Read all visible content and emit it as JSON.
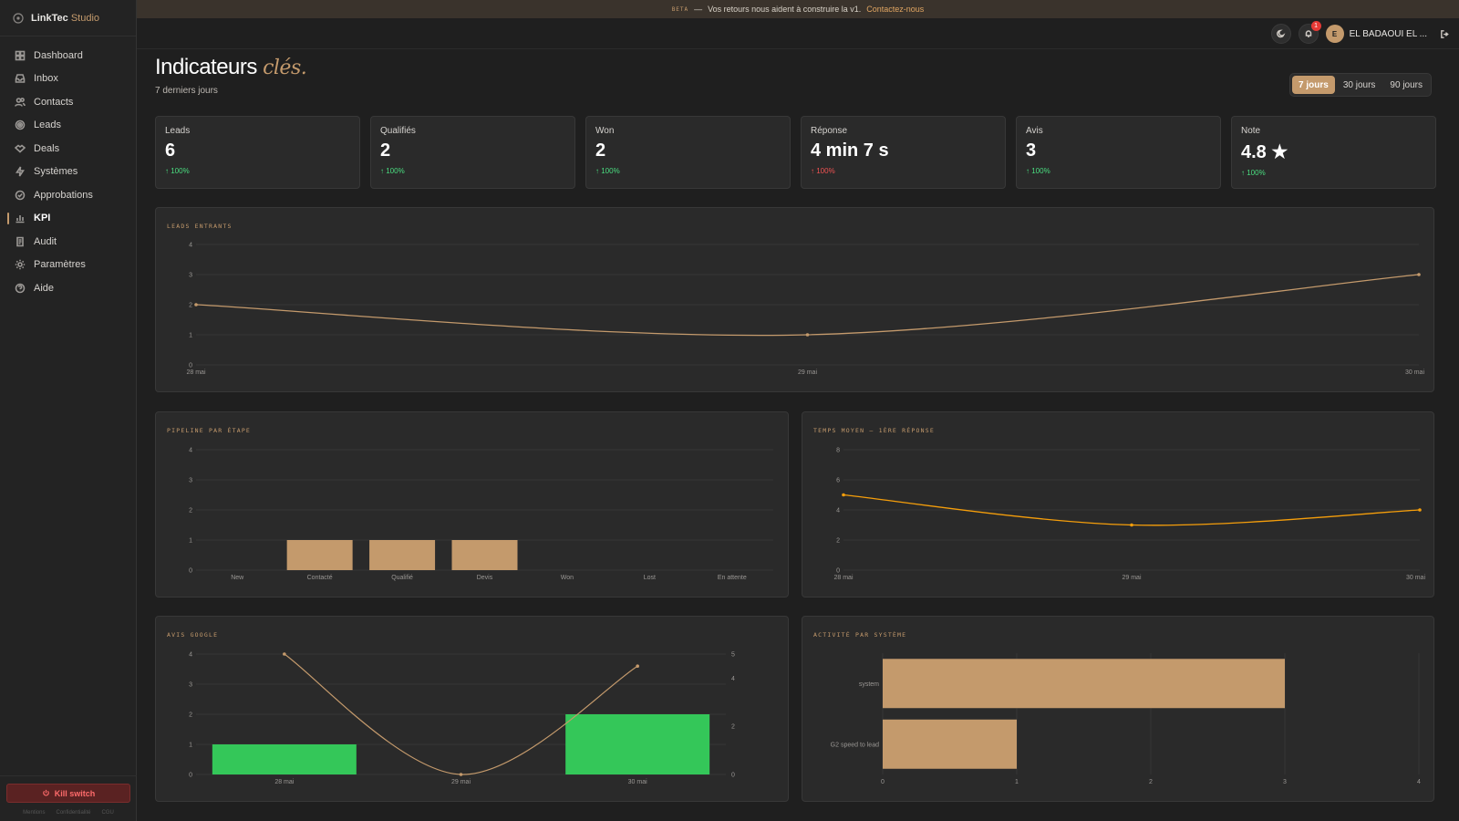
{
  "brand": {
    "name": "LinkTec",
    "accent": "Studio"
  },
  "sidebar": {
    "items": [
      {
        "label": "Dashboard",
        "icon": "grid-icon",
        "active": false
      },
      {
        "label": "Inbox",
        "icon": "inbox-icon",
        "active": false
      },
      {
        "label": "Contacts",
        "icon": "users-icon",
        "active": false
      },
      {
        "label": "Leads",
        "icon": "target-icon",
        "active": false
      },
      {
        "label": "Deals",
        "icon": "handshake-icon",
        "active": false
      },
      {
        "label": "Systèmes",
        "icon": "bolt-icon",
        "active": false
      },
      {
        "label": "Approbations",
        "icon": "check-circle-icon",
        "active": false
      },
      {
        "label": "KPI",
        "icon": "bar-chart-icon",
        "active": true
      },
      {
        "label": "Audit",
        "icon": "scroll-icon",
        "active": false
      },
      {
        "label": "Paramètres",
        "icon": "gear-icon",
        "active": false
      },
      {
        "label": "Aide",
        "icon": "help-icon",
        "active": false
      }
    ],
    "kill_switch": "Kill switch",
    "legal": [
      "Mentions",
      "Confidentialité",
      "CGU"
    ]
  },
  "banner": {
    "tag": "BETA",
    "dash": "—",
    "text": "Vos retours nous aident à construire la v1.",
    "link": "Contactez-nous"
  },
  "header": {
    "notifications": "1",
    "avatar_initial": "E",
    "user_name": "EL BADAOUI EL ..."
  },
  "page": {
    "title": "Indicateurs",
    "title_accent": "clés.",
    "subtitle": "7 derniers jours"
  },
  "period": {
    "options": [
      "7 jours",
      "30 jours",
      "90 jours"
    ],
    "selected": "7 jours"
  },
  "kpis": [
    {
      "label": "Leads",
      "value": "6",
      "delta": "↑ 100%",
      "trend": "up"
    },
    {
      "label": "Qualifiés",
      "value": "2",
      "delta": "↑ 100%",
      "trend": "up"
    },
    {
      "label": "Won",
      "value": "2",
      "delta": "↑ 100%",
      "trend": "up"
    },
    {
      "label": "Réponse",
      "value": "4 min 7 s",
      "delta": "↑ 100%",
      "trend": "down"
    },
    {
      "label": "Avis",
      "value": "3",
      "delta": "↑ 100%",
      "trend": "up"
    },
    {
      "label": "Note",
      "value": "4.8 ★",
      "delta": "↑ 100%",
      "trend": "up"
    }
  ],
  "colors": {
    "accent": "#c49a6c",
    "orange": "#f59e0b",
    "green": "#34c759",
    "up": "#4ade80",
    "down": "#f05252"
  },
  "chart_data": [
    {
      "id": "leads",
      "type": "line",
      "title": "LEADS ENTRANTS",
      "categories": [
        "28 mai",
        "29 mai",
        "30 mai"
      ],
      "values": [
        2,
        1,
        3
      ],
      "ylim": [
        0,
        4
      ],
      "yticks": [
        0,
        1,
        2,
        3,
        4
      ]
    },
    {
      "id": "pipeline",
      "type": "bar",
      "title": "PIPELINE PAR ÉTAPE",
      "categories": [
        "New",
        "Contacté",
        "Qualifié",
        "Devis",
        "Won",
        "Lost",
        "En attente"
      ],
      "values": [
        0,
        1,
        1,
        1,
        0,
        0,
        0
      ],
      "ylim": [
        0,
        4
      ],
      "yticks": [
        0,
        1,
        2,
        3,
        4
      ]
    },
    {
      "id": "response",
      "type": "line",
      "title": "TEMPS MOYEN — 1ÈRE RÉPONSE",
      "categories": [
        "28 mai",
        "29 mai",
        "30 mai"
      ],
      "values": [
        5,
        3,
        4
      ],
      "ylim": [
        0,
        8
      ],
      "yticks": [
        0,
        2,
        4,
        6,
        8
      ]
    },
    {
      "id": "reviews",
      "type": "bar",
      "title": "AVIS GOOGLE",
      "categories": [
        "28 mai",
        "29 mai",
        "30 mai"
      ],
      "series": [
        {
          "type": "bar",
          "values": [
            1,
            0,
            2
          ]
        },
        {
          "type": "line",
          "axis": "right",
          "values": [
            5,
            0,
            4.5
          ]
        }
      ],
      "ylim": [
        0,
        4
      ],
      "yticks": [
        0,
        1,
        2,
        3,
        4
      ],
      "y2lim": [
        0,
        5
      ],
      "y2ticks": [
        0,
        2,
        4,
        5
      ]
    },
    {
      "id": "activity",
      "type": "bar",
      "orientation": "horizontal",
      "title": "ACTIVITÉ PAR SYSTÈME",
      "categories": [
        "system",
        "G2 speed to lead"
      ],
      "values": [
        3,
        1
      ],
      "xlim": [
        0,
        4
      ],
      "xticks": [
        0,
        1,
        2,
        3,
        4
      ]
    }
  ]
}
